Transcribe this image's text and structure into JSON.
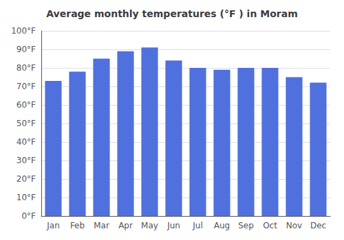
{
  "chart_data": {
    "type": "bar",
    "title": "Average monthly temperatures (°F ) in Moram",
    "categories": [
      "Jan",
      "Feb",
      "Mar",
      "Apr",
      "May",
      "Jun",
      "Jul",
      "Aug",
      "Sep",
      "Oct",
      "Nov",
      "Dec"
    ],
    "values": [
      73,
      78,
      85,
      89,
      91,
      84,
      80,
      79,
      80,
      80,
      75,
      72
    ],
    "ylim": [
      0,
      100
    ],
    "yticks": [
      {
        "value": 0,
        "label": "0°F"
      },
      {
        "value": 10,
        "label": "10°F"
      },
      {
        "value": 20,
        "label": "20°F"
      },
      {
        "value": 30,
        "label": "30°F"
      },
      {
        "value": 40,
        "label": "40°F"
      },
      {
        "value": 50,
        "label": "50°F"
      },
      {
        "value": 60,
        "label": "60°F"
      },
      {
        "value": 70,
        "label": "70°F"
      },
      {
        "value": 80,
        "label": "80°F"
      },
      {
        "value": 90,
        "label": "90°F"
      },
      {
        "value": 100,
        "label": "100°F"
      }
    ],
    "grid": true
  }
}
